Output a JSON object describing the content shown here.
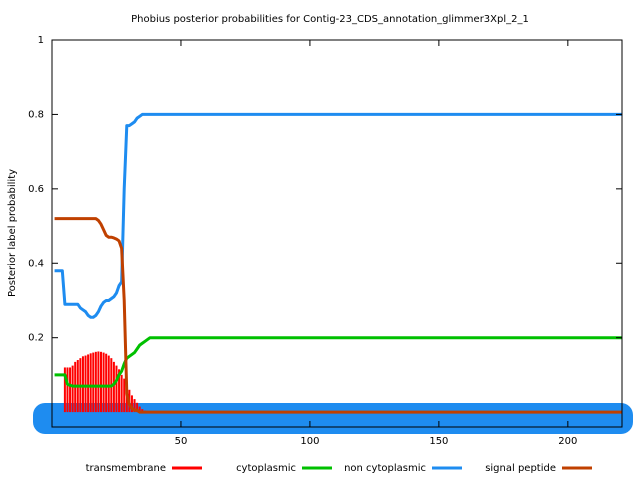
{
  "chart_data": {
    "type": "line",
    "title": "Phobius posterior probabilities for Contig-23_CDS_annotation_glimmer3Xpl_2_1",
    "y_label": "Posterior label probability",
    "x": [
      1,
      2,
      3,
      4,
      5,
      6,
      7,
      8,
      9,
      10,
      11,
      12,
      13,
      14,
      15,
      16,
      17,
      18,
      19,
      20,
      21,
      22,
      23,
      24,
      25,
      26,
      27,
      28,
      29,
      30,
      31,
      32,
      33,
      34,
      35,
      36,
      37,
      38,
      39,
      40,
      50,
      100,
      150,
      200,
      221
    ],
    "series": [
      {
        "name": "transmembrane",
        "color": "#ff0000",
        "style": "impulses",
        "values": [
          0,
          0,
          0,
          0,
          0.12,
          0.12,
          0.12,
          0.125,
          0.135,
          0.14,
          0.145,
          0.15,
          0.152,
          0.155,
          0.158,
          0.16,
          0.162,
          0.163,
          0.162,
          0.16,
          0.157,
          0.152,
          0.145,
          0.135,
          0.125,
          0.115,
          0.1,
          0.09,
          0.075,
          0.06,
          0.045,
          0.035,
          0.025,
          0.015,
          0.008,
          0.004,
          0.002,
          0,
          0,
          0,
          0,
          0,
          0,
          0,
          0
        ]
      },
      {
        "name": "cytoplasmic",
        "color": "#00c000",
        "style": "lines",
        "values": [
          0.1,
          0.1,
          0.1,
          0.1,
          0.1,
          0.075,
          0.072,
          0.07,
          0.07,
          0.07,
          0.07,
          0.07,
          0.07,
          0.07,
          0.07,
          0.07,
          0.07,
          0.07,
          0.07,
          0.07,
          0.07,
          0.07,
          0.07,
          0.075,
          0.085,
          0.1,
          0.11,
          0.13,
          0.145,
          0.15,
          0.155,
          0.16,
          0.17,
          0.18,
          0.185,
          0.19,
          0.195,
          0.2,
          0.2,
          0.2,
          0.2,
          0.2,
          0.2,
          0.2,
          0.2
        ]
      },
      {
        "name": "non cytoplasmic",
        "color": "#1e8cf0",
        "style": "lines",
        "values": [
          0.38,
          0.38,
          0.38,
          0.38,
          0.29,
          0.29,
          0.29,
          0.29,
          0.29,
          0.29,
          0.28,
          0.275,
          0.27,
          0.26,
          0.255,
          0.255,
          0.26,
          0.27,
          0.285,
          0.295,
          0.3,
          0.3,
          0.305,
          0.31,
          0.32,
          0.34,
          0.35,
          0.6,
          0.77,
          0.77,
          0.775,
          0.78,
          0.79,
          0.795,
          0.8,
          0.8,
          0.8,
          0.8,
          0.8,
          0.8,
          0.8,
          0.8,
          0.8,
          0.8,
          0.8
        ]
      },
      {
        "name": "signal peptide",
        "color": "#c04000",
        "style": "lines",
        "values": [
          0.52,
          0.52,
          0.52,
          0.52,
          0.52,
          0.52,
          0.52,
          0.52,
          0.52,
          0.52,
          0.52,
          0.52,
          0.52,
          0.52,
          0.52,
          0.52,
          0.52,
          0.515,
          0.505,
          0.49,
          0.475,
          0.47,
          0.47,
          0.468,
          0.465,
          0.46,
          0.44,
          0.3,
          0.05,
          0.02,
          0.01,
          0.005,
          0.005,
          0,
          0,
          0,
          0,
          0,
          0,
          0,
          0,
          0,
          0,
          0,
          0
        ]
      }
    ],
    "xlim": [
      0,
      221
    ],
    "ylim": [
      -0.04,
      1
    ],
    "xticks": [
      50,
      100,
      150,
      200
    ],
    "yticks": [
      0.2,
      0.4,
      0.6,
      0.8,
      1
    ],
    "grid": false,
    "legend": "bottom"
  }
}
